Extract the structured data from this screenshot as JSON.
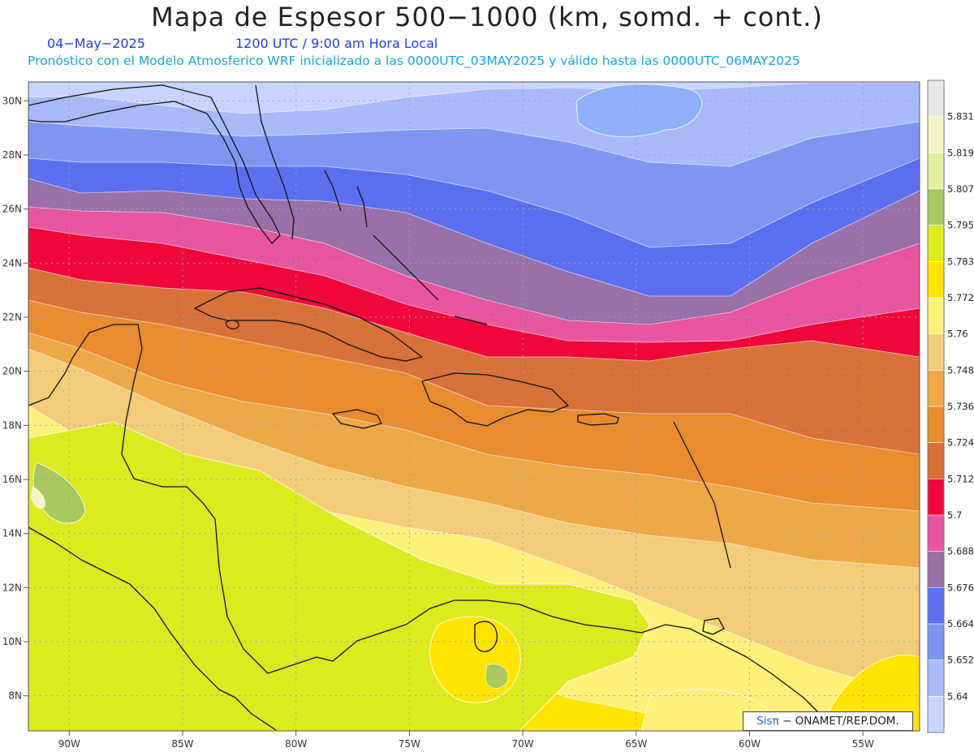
{
  "header": {
    "title": "Mapa de Espesor 500−1000 (km, somd. + cont.)",
    "date": "04−May−2025",
    "time": "1200 UTC / 9:00 am Hora Local",
    "forecast_line": "Pronóstico con el Modelo Atmosferico WRF inicializado a las 0000UTC_03MAY2025 y válido hasta las  0000UTC_06MAY2025"
  },
  "map": {
    "lon_labels": [
      "90W",
      "85W",
      "80W",
      "75W",
      "70W",
      "65W",
      "60W",
      "55W"
    ],
    "lon_values": [
      -90,
      -85,
      -80,
      -75,
      -70,
      -65,
      -60,
      -55
    ],
    "lat_labels": [
      "30N",
      "28N",
      "26N",
      "24N",
      "22N",
      "20N",
      "18N",
      "16N",
      "14N",
      "12N",
      "10N",
      "8N"
    ],
    "lat_values": [
      30,
      28,
      26,
      24,
      22,
      20,
      18,
      16,
      14,
      12,
      10,
      8
    ],
    "lon_range": [
      -91.8,
      -52.5
    ],
    "lat_range": [
      6.7,
      30.7
    ]
  },
  "colorbar": {
    "labels": [
      "5.831",
      "5.819",
      "5.807",
      "5.795",
      "5.783",
      "5.772",
      "5.76",
      "5.748",
      "5.736",
      "5.724",
      "5.712",
      "5.7",
      "5.688",
      "5.676",
      "5.664",
      "5.652",
      "5.64"
    ],
    "colors": [
      "#e8e8e8",
      "#f2f6c8",
      "#e2f0a0",
      "#a8c860",
      "#dcea20",
      "#ffe400",
      "#fff07a",
      "#f2cc78",
      "#efa848",
      "#e88c30",
      "#d87238",
      "#f0083a",
      "#e855a0",
      "#9a70a8",
      "#5c6ef0",
      "#7e96f2",
      "#a8baf8",
      "#c8d4ff"
    ]
  },
  "credit": {
    "sis": "Sisπ",
    "org": " − ONAMET/REP.DOM."
  }
}
